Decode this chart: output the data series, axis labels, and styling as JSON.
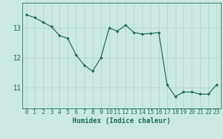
{
  "x": [
    0,
    1,
    2,
    3,
    4,
    5,
    6,
    7,
    8,
    9,
    10,
    11,
    12,
    13,
    14,
    15,
    16,
    17,
    18,
    19,
    20,
    21,
    22,
    23
  ],
  "y": [
    13.45,
    13.35,
    13.2,
    13.05,
    12.75,
    12.65,
    12.1,
    11.75,
    11.55,
    12.0,
    13.0,
    12.9,
    13.1,
    12.85,
    12.8,
    12.82,
    12.85,
    11.1,
    10.7,
    10.85,
    10.85,
    10.78,
    10.78,
    11.1
  ],
  "xlabel": "Humidex (Indice chaleur)",
  "yticks": [
    11,
    12,
    13
  ],
  "xticks": [
    0,
    1,
    2,
    3,
    4,
    5,
    6,
    7,
    8,
    9,
    10,
    11,
    12,
    13,
    14,
    15,
    16,
    17,
    18,
    19,
    20,
    21,
    22,
    23
  ],
  "line_color": "#1a6b5a",
  "marker_color": "#1a6b5a",
  "bg_color": "#cce8e4",
  "grid_color": "#aacfca",
  "axis_color": "#1a6b5a",
  "xlabel_fontsize": 7,
  "tick_fontsize": 6,
  "xlim": [
    -0.5,
    23.5
  ],
  "ylim": [
    10.3,
    13.85
  ]
}
